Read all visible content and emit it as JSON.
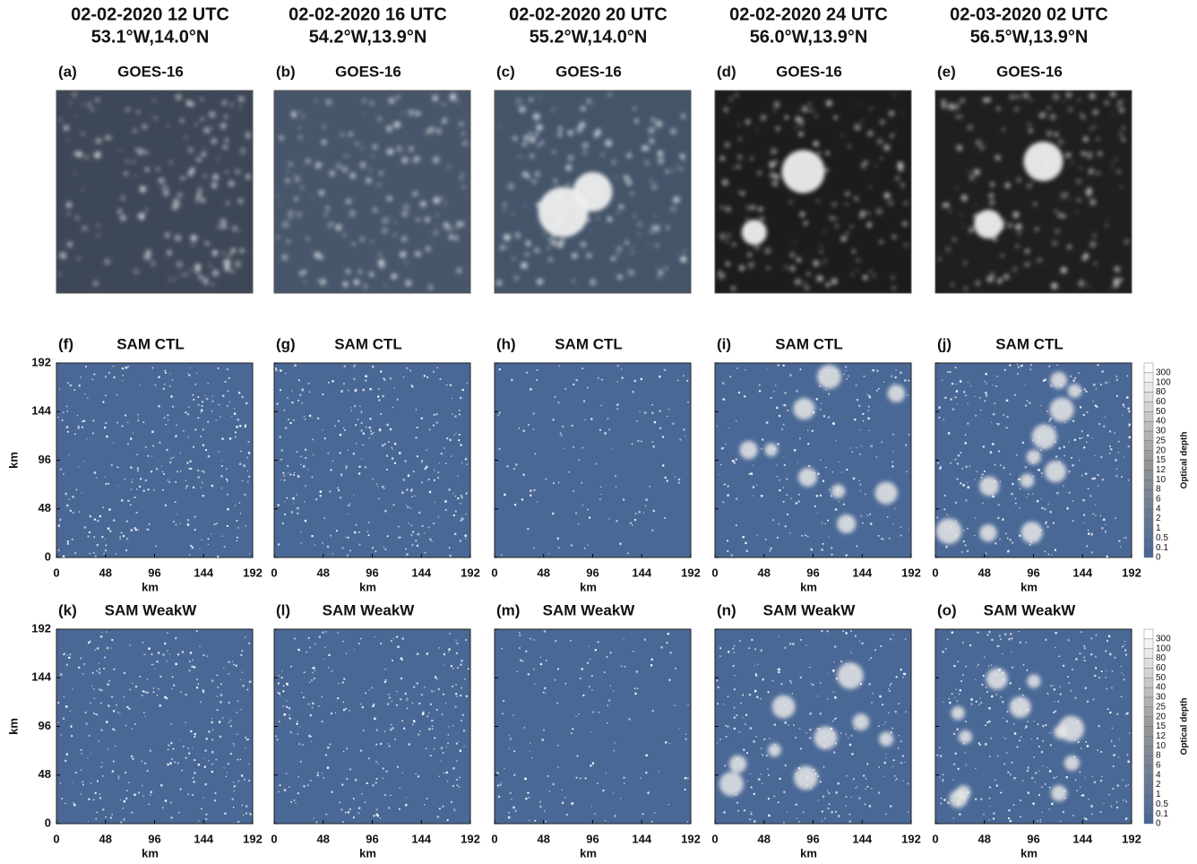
{
  "columns": [
    {
      "date": "02-02-2020 12 UTC",
      "location": "53.1°W,14.0°N"
    },
    {
      "date": "02-02-2020 16 UTC",
      "location": "54.2°W,13.9°N"
    },
    {
      "date": "02-02-2020 20 UTC",
      "location": "55.2°W,14.0°N"
    },
    {
      "date": "02-02-2020 24 UTC",
      "location": "56.0°W,13.9°N"
    },
    {
      "date": "02-03-2020 02 UTC",
      "location": "56.5°W,13.9°N"
    }
  ],
  "rows": [
    {
      "title": "GOES-16",
      "panels": [
        "(a)",
        "(b)",
        "(c)",
        "(d)",
        "(e)"
      ]
    },
    {
      "title": "SAM CTL",
      "panels": [
        "(f)",
        "(g)",
        "(h)",
        "(i)",
        "(j)"
      ]
    },
    {
      "title": "SAM WeakW",
      "panels": [
        "(k)",
        "(l)",
        "(m)",
        "(n)",
        "(o)"
      ]
    }
  ],
  "axes": {
    "xlabel": "km",
    "ylabel": "km",
    "xlim": [
      0,
      192
    ],
    "ylim": [
      0,
      192
    ],
    "xticks": [
      0,
      48,
      96,
      144,
      192
    ],
    "yticks": [
      0,
      48,
      96,
      144,
      192
    ]
  },
  "colorbar": {
    "label": "Optical depth",
    "ticks": [
      0,
      0.1,
      0.5,
      1,
      2,
      4,
      6,
      8,
      10,
      12,
      15,
      20,
      25,
      30,
      40,
      50,
      60,
      80,
      100,
      300
    ]
  }
}
